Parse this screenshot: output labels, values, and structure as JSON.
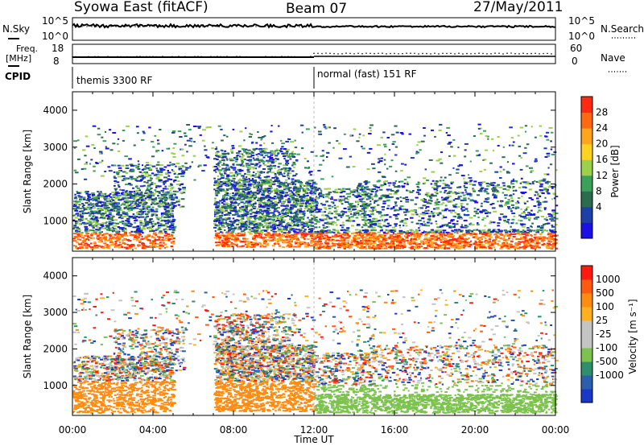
{
  "header": {
    "station": "Syowa East (fitACF)",
    "beam": "Beam 07",
    "date": "27/May/2011"
  },
  "top_panels": {
    "nsky_label": "N.Sky",
    "nsky_ticks": [
      "10^5",
      "10^0"
    ],
    "nsearch_label": "N.Search",
    "nsearch_ticks": [
      "10^5",
      "10^0"
    ],
    "freq_label_1": "Freq.",
    "freq_label_2": "[MHz]",
    "freq_ticks": [
      "18",
      "8"
    ],
    "nave_label": "Nave",
    "nave_ticks": [
      "60",
      "0"
    ],
    "cpid_label": "CPID",
    "cpid_segments": [
      {
        "label": "themis 3300 RF",
        "start_hour": 0,
        "end_hour": 12
      },
      {
        "label": "normal (fast) 151 RF",
        "start_hour": 12,
        "end_hour": 24
      }
    ]
  },
  "chart_data": [
    {
      "type": "heatmap",
      "name": "power",
      "ylabel": "Slant Range [km]",
      "yticks": [
        "4000",
        "3000",
        "2000",
        "1000"
      ],
      "ylim": [
        180,
        4500
      ],
      "xlim_hours": [
        0,
        24
      ],
      "colorbar_label": "Power [dB]",
      "colorbar_ticks": [
        "28",
        "24",
        "20",
        "16",
        "12",
        "8",
        "4"
      ],
      "colorbar_colors": [
        "#1a10e6",
        "#1d3fa8",
        "#2d6b4e",
        "#3aa05a",
        "#9bd04b",
        "#ffd21f",
        "#ffa41f",
        "#ff6a10",
        "#ff2a10"
      ]
    },
    {
      "type": "heatmap",
      "name": "velocity",
      "ylabel": "Slant Range [km]",
      "yticks": [
        "4000",
        "3000",
        "2000",
        "1000"
      ],
      "ylim": [
        180,
        4500
      ],
      "xlim_hours": [
        0,
        24
      ],
      "colorbar_label": "Velocity [m s⁻¹]",
      "colorbar_ticks": [
        "1000",
        "500",
        "100",
        "25",
        "-25",
        "-100",
        "-500",
        "-1000"
      ],
      "colorbar_colors": [
        "#1a38c8",
        "#2b5fae",
        "#2e8f6a",
        "#7cc24e",
        "#c4c4c4",
        "#c4c4c4",
        "#ffb020",
        "#ff8c10",
        "#ff5a10",
        "#ff1a10"
      ]
    }
  ],
  "xaxis": {
    "ticks": [
      "00:00",
      "04:00",
      "08:00",
      "12:00",
      "16:00",
      "20:00",
      "00:00"
    ],
    "label": "Time UT"
  }
}
